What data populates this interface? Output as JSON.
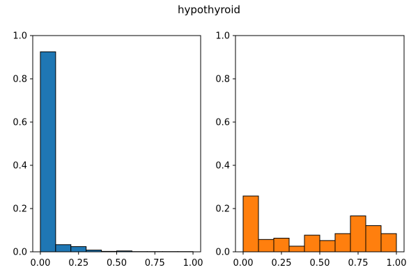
{
  "figure": {
    "title": "hypothyroid"
  },
  "chart_data": [
    {
      "type": "bar",
      "subtype": "histogram",
      "bin_edges": [
        0.0,
        0.1,
        0.2,
        0.3,
        0.4,
        0.5,
        0.6,
        0.7,
        0.8,
        0.9,
        1.0
      ],
      "values": [
        0.925,
        0.033,
        0.024,
        0.008,
        0.002,
        0.004,
        0.001,
        0.001,
        0.001,
        0.001
      ],
      "xlim": [
        -0.05,
        1.05
      ],
      "ylim": [
        0,
        1.0
      ],
      "xticks": [
        0.0,
        0.25,
        0.5,
        0.75,
        1.0
      ],
      "xtick_labels": [
        "0.00",
        "0.25",
        "0.50",
        "0.75",
        "1.00"
      ],
      "yticks": [
        0.0,
        0.2,
        0.4,
        0.6,
        0.8,
        1.0
      ],
      "ytick_labels": [
        "0.0",
        "0.2",
        "0.4",
        "0.6",
        "0.8",
        "1.0"
      ],
      "color": "#1f77b4",
      "edgecolor": "#000000",
      "grid": false
    },
    {
      "type": "bar",
      "subtype": "histogram",
      "bin_edges": [
        0.0,
        0.1,
        0.2,
        0.3,
        0.4,
        0.5,
        0.6,
        0.7,
        0.8,
        0.9,
        1.0
      ],
      "values": [
        0.258,
        0.057,
        0.063,
        0.026,
        0.077,
        0.052,
        0.084,
        0.166,
        0.121,
        0.084
      ],
      "xlim": [
        -0.05,
        1.05
      ],
      "ylim": [
        0,
        1.0
      ],
      "xticks": [
        0.0,
        0.25,
        0.5,
        0.75,
        1.0
      ],
      "xtick_labels": [
        "0.00",
        "0.25",
        "0.50",
        "0.75",
        "1.00"
      ],
      "yticks": [
        0.0,
        0.2,
        0.4,
        0.6,
        0.8,
        1.0
      ],
      "ytick_labels": [
        "0.0",
        "0.2",
        "0.4",
        "0.6",
        "0.8",
        "1.0"
      ],
      "color": "#ff7f0e",
      "edgecolor": "#000000",
      "grid": false
    }
  ]
}
